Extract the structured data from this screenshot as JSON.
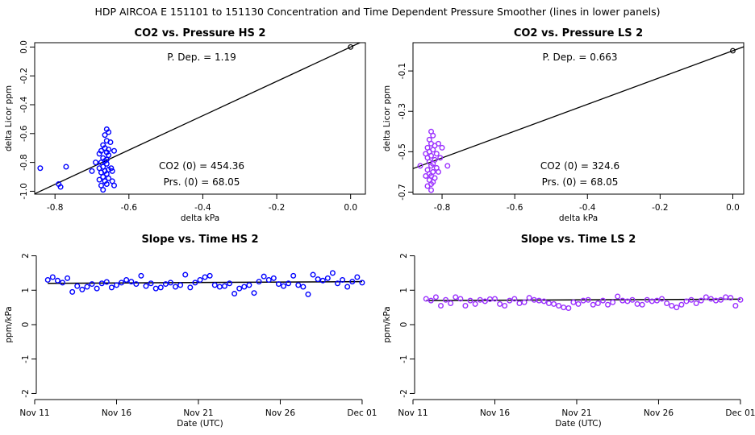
{
  "figure": {
    "main_title": "HDP   AIRCOA E   151101 to 151130   Concentration and Time Dependent Pressure Smoother (lines in lower panels)"
  },
  "chart_data": [
    {
      "id": "co2-pressure-hs2",
      "type": "scatter",
      "title": "CO2 vs. Pressure HS 2",
      "xlabel": "delta kPa",
      "ylabel": "delta Licor ppm",
      "xlim": [
        -0.855,
        0.04
      ],
      "ylim": [
        -1.02,
        0.03
      ],
      "xticks": [
        -0.8,
        -0.6,
        -0.4,
        -0.2,
        0.0
      ],
      "xtick_labels": [
        "-0.8",
        "-0.6",
        "-0.4",
        "-0.2",
        "0.0"
      ],
      "yticks": [
        0.0,
        -0.2,
        -0.4,
        -0.6,
        -0.8,
        -1.0
      ],
      "ytick_labels": [
        "0.0",
        "-0.2",
        "-0.4",
        "-0.6",
        "-0.8",
        "-1.0"
      ],
      "point_color": "#0000ff",
      "annotations": {
        "pdep": "P. Dep. =  1.19",
        "co2_0": "CO2 (0) =  454.36",
        "prs_0": "Prs. (0) =  68.05"
      },
      "fit_line": {
        "slope": 1.19,
        "intercept": 0
      },
      "origin_point": [
        0,
        0
      ],
      "points": [
        [
          -0.84,
          -0.84
        ],
        [
          -0.79,
          -0.95
        ],
        [
          -0.785,
          -0.97
        ],
        [
          -0.77,
          -0.83
        ],
        [
          -0.66,
          -0.57
        ],
        [
          -0.655,
          -0.59
        ],
        [
          -0.665,
          -0.61
        ],
        [
          -0.66,
          -0.65
        ],
        [
          -0.67,
          -0.68
        ],
        [
          -0.665,
          -0.7
        ],
        [
          -0.675,
          -0.72
        ],
        [
          -0.66,
          -0.73
        ],
        [
          -0.68,
          -0.74
        ],
        [
          -0.655,
          -0.75
        ],
        [
          -0.67,
          -0.77
        ],
        [
          -0.665,
          -0.79
        ],
        [
          -0.675,
          -0.8
        ],
        [
          -0.66,
          -0.81
        ],
        [
          -0.67,
          -0.83
        ],
        [
          -0.68,
          -0.84
        ],
        [
          -0.655,
          -0.85
        ],
        [
          -0.665,
          -0.86
        ],
        [
          -0.675,
          -0.87
        ],
        [
          -0.66,
          -0.88
        ],
        [
          -0.67,
          -0.9
        ],
        [
          -0.655,
          -0.91
        ],
        [
          -0.68,
          -0.92
        ],
        [
          -0.665,
          -0.93
        ],
        [
          -0.66,
          -0.95
        ],
        [
          -0.675,
          -0.96
        ],
        [
          -0.67,
          -0.99
        ],
        [
          -0.69,
          -0.8
        ],
        [
          -0.645,
          -0.86
        ],
        [
          -0.64,
          -0.72
        ],
        [
          -0.65,
          -0.66
        ],
        [
          -0.645,
          -0.93
        ],
        [
          -0.64,
          -0.96
        ],
        [
          -0.7,
          -0.86
        ],
        [
          -0.655,
          -0.71
        ],
        [
          -0.66,
          -0.78
        ],
        [
          -0.648,
          -0.84
        ]
      ]
    },
    {
      "id": "co2-pressure-ls2",
      "type": "scatter",
      "title": "CO2 vs. Pressure LS 2",
      "xlabel": "delta kPa",
      "ylabel": "delta Licor ppm",
      "xlim": [
        -0.88,
        0.03
      ],
      "ylim": [
        -0.71,
        0.04
      ],
      "xticks": [
        -0.8,
        -0.6,
        -0.4,
        -0.2,
        0.0
      ],
      "xtick_labels": [
        "-0.8",
        "-0.6",
        "-0.4",
        "-0.2",
        "0.0"
      ],
      "yticks": [
        -0.1,
        -0.3,
        -0.5,
        -0.7
      ],
      "ytick_labels": [
        "-0.1",
        "-0.3",
        "-0.5",
        "-0.7"
      ],
      "point_color": "#9b30ff",
      "annotations": {
        "pdep": "P. Dep. =  0.663",
        "co2_0": "CO2 (0) =  324.6",
        "prs_0": "Prs. (0) =  68.05"
      },
      "fit_line": {
        "slope": 0.663,
        "intercept": 0
      },
      "origin_point": [
        0,
        0
      ],
      "points": [
        [
          -0.83,
          -0.4
        ],
        [
          -0.825,
          -0.42
        ],
        [
          -0.835,
          -0.44
        ],
        [
          -0.83,
          -0.46
        ],
        [
          -0.82,
          -0.47
        ],
        [
          -0.84,
          -0.48
        ],
        [
          -0.825,
          -0.49
        ],
        [
          -0.835,
          -0.5
        ],
        [
          -0.815,
          -0.51
        ],
        [
          -0.83,
          -0.52
        ],
        [
          -0.84,
          -0.53
        ],
        [
          -0.82,
          -0.54
        ],
        [
          -0.835,
          -0.55
        ],
        [
          -0.825,
          -0.56
        ],
        [
          -0.83,
          -0.57
        ],
        [
          -0.815,
          -0.58
        ],
        [
          -0.84,
          -0.59
        ],
        [
          -0.825,
          -0.6
        ],
        [
          -0.835,
          -0.61
        ],
        [
          -0.83,
          -0.62
        ],
        [
          -0.82,
          -0.63
        ],
        [
          -0.835,
          -0.64
        ],
        [
          -0.825,
          -0.65
        ],
        [
          -0.83,
          -0.66
        ],
        [
          -0.84,
          -0.67
        ],
        [
          -0.83,
          -0.69
        ],
        [
          -0.86,
          -0.57
        ],
        [
          -0.785,
          -0.57
        ],
        [
          -0.8,
          -0.48
        ],
        [
          -0.805,
          -0.53
        ],
        [
          -0.81,
          -0.6
        ],
        [
          -0.845,
          -0.51
        ],
        [
          -0.845,
          -0.62
        ],
        [
          -0.81,
          -0.46
        ]
      ]
    },
    {
      "id": "slope-time-hs2",
      "type": "scatter",
      "title": "Slope vs. Time HS 2",
      "xlabel": "Date (UTC)",
      "ylabel": "ppm/kPa",
      "xlim": [
        11,
        31.2
      ],
      "ylim": [
        -2.2,
        2.2
      ],
      "xticks": [
        11,
        16,
        21,
        26,
        31
      ],
      "xtick_labels": [
        "Nov 11",
        "Nov 16",
        "Nov 21",
        "Nov 26",
        "Dec 01"
      ],
      "yticks": [
        -2,
        -1,
        0,
        1,
        2
      ],
      "ytick_labels": [
        "-2",
        "-1",
        "0",
        "1",
        "2"
      ],
      "point_color": "#0000ff",
      "smoother": {
        "x": [
          11.8,
          31
        ],
        "y": [
          1.2,
          1.25
        ]
      },
      "x": [
        11.8,
        12.1,
        12.4,
        12.7,
        13.0,
        13.3,
        13.6,
        13.9,
        14.2,
        14.5,
        14.8,
        15.1,
        15.4,
        15.7,
        16.0,
        16.3,
        16.6,
        16.9,
        17.2,
        17.5,
        17.8,
        18.1,
        18.4,
        18.7,
        19.0,
        19.3,
        19.6,
        19.9,
        20.2,
        20.5,
        20.8,
        21.1,
        21.4,
        21.7,
        22.0,
        22.3,
        22.6,
        22.9,
        23.2,
        23.5,
        23.8,
        24.1,
        24.4,
        24.7,
        25.0,
        25.3,
        25.6,
        25.9,
        26.2,
        26.5,
        26.8,
        27.1,
        27.4,
        27.7,
        28.0,
        28.3,
        28.6,
        28.9,
        29.2,
        29.5,
        29.8,
        30.1,
        30.4,
        30.7,
        31.0
      ],
      "values": [
        1.3,
        1.38,
        1.28,
        1.22,
        1.35,
        0.95,
        1.12,
        1.02,
        1.1,
        1.18,
        1.05,
        1.2,
        1.24,
        1.08,
        1.15,
        1.22,
        1.3,
        1.25,
        1.18,
        1.42,
        1.12,
        1.2,
        1.05,
        1.08,
        1.18,
        1.22,
        1.1,
        1.15,
        1.45,
        1.08,
        1.22,
        1.3,
        1.38,
        1.42,
        1.15,
        1.1,
        1.12,
        1.2,
        0.9,
        1.05,
        1.1,
        1.15,
        0.92,
        1.25,
        1.4,
        1.3,
        1.35,
        1.18,
        1.12,
        1.2,
        1.42,
        1.15,
        1.1,
        0.88,
        1.45,
        1.32,
        1.28,
        1.35,
        1.5,
        1.2,
        1.3,
        1.1,
        1.25,
        1.38,
        1.22
      ]
    },
    {
      "id": "slope-time-ls2",
      "type": "scatter",
      "title": "Slope vs. Time LS 2",
      "xlabel": "Date (UTC)",
      "ylabel": "ppm/kPa",
      "xlim": [
        11,
        31.2
      ],
      "ylim": [
        -2.2,
        2.2
      ],
      "xticks": [
        11,
        16,
        21,
        26,
        31
      ],
      "xtick_labels": [
        "Nov 11",
        "Nov 16",
        "Nov 21",
        "Nov 26",
        "Dec 01"
      ],
      "yticks": [
        -2,
        -1,
        0,
        1,
        2
      ],
      "ytick_labels": [
        "-2",
        "-1",
        "0",
        "1",
        "2"
      ],
      "point_color": "#9b30ff",
      "smoother": {
        "x": [
          11.8,
          31
        ],
        "y": [
          0.7,
          0.74
        ]
      },
      "x": [
        11.8,
        12.1,
        12.4,
        12.7,
        13.0,
        13.3,
        13.6,
        13.9,
        14.2,
        14.5,
        14.8,
        15.1,
        15.4,
        15.7,
        16.0,
        16.3,
        16.6,
        16.9,
        17.2,
        17.5,
        17.8,
        18.1,
        18.4,
        18.7,
        19.0,
        19.3,
        19.6,
        19.9,
        20.2,
        20.5,
        20.8,
        21.1,
        21.4,
        21.7,
        22.0,
        22.3,
        22.6,
        22.9,
        23.2,
        23.5,
        23.8,
        24.1,
        24.4,
        24.7,
        25.0,
        25.3,
        25.6,
        25.9,
        26.2,
        26.5,
        26.8,
        27.1,
        27.4,
        27.7,
        28.0,
        28.3,
        28.6,
        28.9,
        29.2,
        29.5,
        29.8,
        30.1,
        30.4,
        30.7,
        31.0
      ],
      "values": [
        0.75,
        0.7,
        0.8,
        0.55,
        0.72,
        0.62,
        0.8,
        0.75,
        0.55,
        0.7,
        0.6,
        0.72,
        0.68,
        0.74,
        0.75,
        0.6,
        0.55,
        0.7,
        0.75,
        0.62,
        0.65,
        0.78,
        0.72,
        0.7,
        0.68,
        0.62,
        0.6,
        0.55,
        0.5,
        0.48,
        0.65,
        0.6,
        0.7,
        0.72,
        0.58,
        0.62,
        0.7,
        0.58,
        0.65,
        0.82,
        0.7,
        0.68,
        0.72,
        0.6,
        0.58,
        0.72,
        0.68,
        0.7,
        0.75,
        0.62,
        0.55,
        0.5,
        0.58,
        0.68,
        0.72,
        0.62,
        0.7,
        0.8,
        0.75,
        0.7,
        0.72,
        0.8,
        0.78,
        0.55,
        0.72
      ]
    }
  ]
}
